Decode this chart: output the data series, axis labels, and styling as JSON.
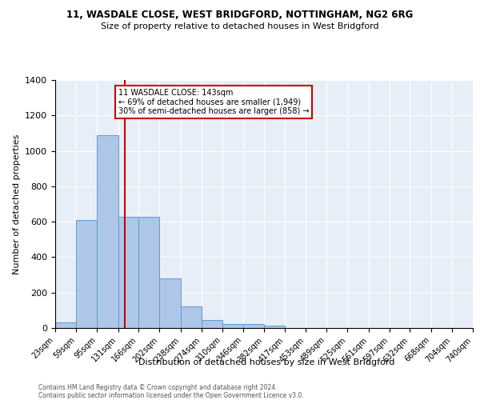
{
  "title1": "11, WASDALE CLOSE, WEST BRIDGFORD, NOTTINGHAM, NG2 6RG",
  "title2": "Size of property relative to detached houses in West Bridgford",
  "xlabel": "Distribution of detached houses by size in West Bridgford",
  "ylabel": "Number of detached properties",
  "bin_edges": [
    23,
    59,
    95,
    131,
    166,
    202,
    238,
    274,
    310,
    346,
    382,
    417,
    453,
    489,
    525,
    561,
    597,
    632,
    668,
    704,
    740
  ],
  "bin_labels": [
    "23sqm",
    "59sqm",
    "95sqm",
    "131sqm",
    "166sqm",
    "202sqm",
    "238sqm",
    "274sqm",
    "310sqm",
    "346sqm",
    "382sqm",
    "417sqm",
    "453sqm",
    "489sqm",
    "525sqm",
    "561sqm",
    "597sqm",
    "632sqm",
    "668sqm",
    "704sqm",
    "740sqm"
  ],
  "counts": [
    30,
    610,
    1090,
    630,
    630,
    280,
    120,
    47,
    22,
    22,
    12,
    0,
    0,
    0,
    0,
    0,
    0,
    0,
    0,
    0
  ],
  "bar_color": "#aec6e8",
  "bar_edge_color": "#5a9fd4",
  "vline_x": 143,
  "vline_color": "#cc0000",
  "annotation_text": "11 WASDALE CLOSE: 143sqm\n← 69% of detached houses are smaller (1,949)\n30% of semi-detached houses are larger (858) →",
  "annotation_box_color": "#ffffff",
  "annotation_box_edge": "#cc0000",
  "ylim": [
    0,
    1400
  ],
  "yticks": [
    0,
    200,
    400,
    600,
    800,
    1000,
    1200,
    1400
  ],
  "background_color": "#e8eef8",
  "grid_color": "#ffffff",
  "footer1": "Contains HM Land Registry data © Crown copyright and database right 2024.",
  "footer2": "Contains public sector information licensed under the Open Government Licence v3.0."
}
